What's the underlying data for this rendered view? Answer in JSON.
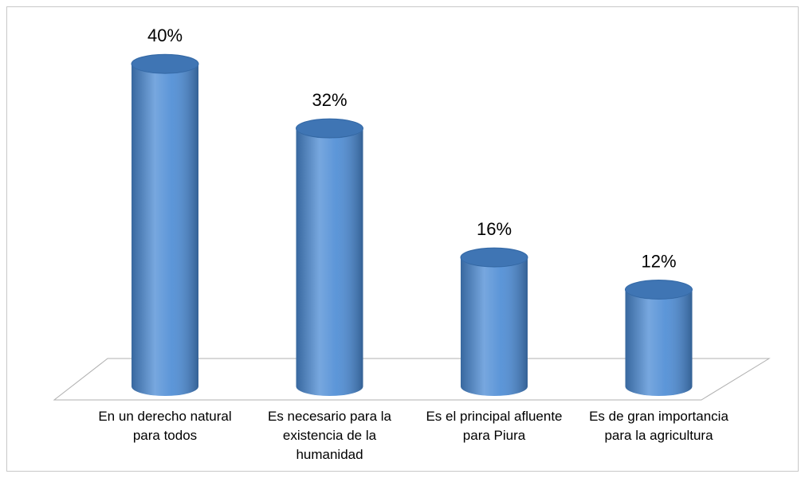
{
  "chart_data": {
    "type": "bar3d",
    "categories": [
      "En un derecho natural para todos",
      "Es necesario para la existencia de la humanidad",
      "Es el principal afluente para Piura",
      "Es de gran importancia para la agricultura"
    ],
    "values": [
      40,
      32,
      16,
      12
    ],
    "value_labels": [
      "40%",
      "32%",
      "16%",
      "12%"
    ],
    "color": "#4a8ad4"
  }
}
